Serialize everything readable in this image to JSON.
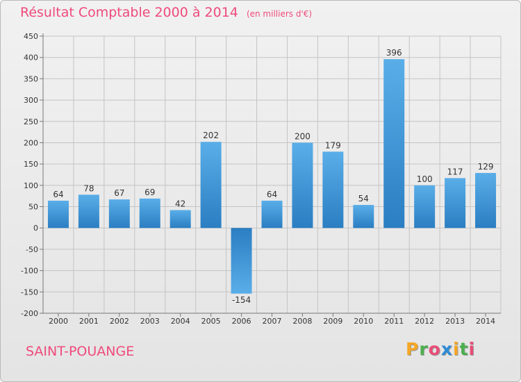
{
  "chart_data": {
    "type": "bar",
    "title": "Résultat Comptable 2000 à 2014",
    "unit_note": "(en milliers d'€)",
    "categories": [
      "2000",
      "2001",
      "2002",
      "2003",
      "2004",
      "2005",
      "2006",
      "2007",
      "2008",
      "2009",
      "2010",
      "2011",
      "2012",
      "2013",
      "2014"
    ],
    "values": [
      64,
      78,
      67,
      69,
      42,
      202,
      -154,
      64,
      200,
      179,
      54,
      396,
      100,
      117,
      129
    ],
    "ylim": [
      -200,
      450
    ],
    "yticks": [
      -200,
      -150,
      -100,
      -50,
      0,
      50,
      100,
      150,
      200,
      250,
      300,
      350,
      400,
      450
    ],
    "xlabel": "",
    "ylabel": "",
    "grid": true,
    "bar_color_light": "#5aaee8",
    "bar_color_dark": "#2a7ec2"
  },
  "commune": "SAINT-POUANGE",
  "brand": {
    "letters": [
      "P",
      "r",
      "o",
      "x",
      "i",
      "t",
      "i"
    ],
    "colors": [
      "#f5a623",
      "#4caf50",
      "#e94e77",
      "#2e8bd6",
      "#f5a623",
      "#4caf50",
      "#e94e77"
    ]
  },
  "title_color": "#ef4a7c"
}
